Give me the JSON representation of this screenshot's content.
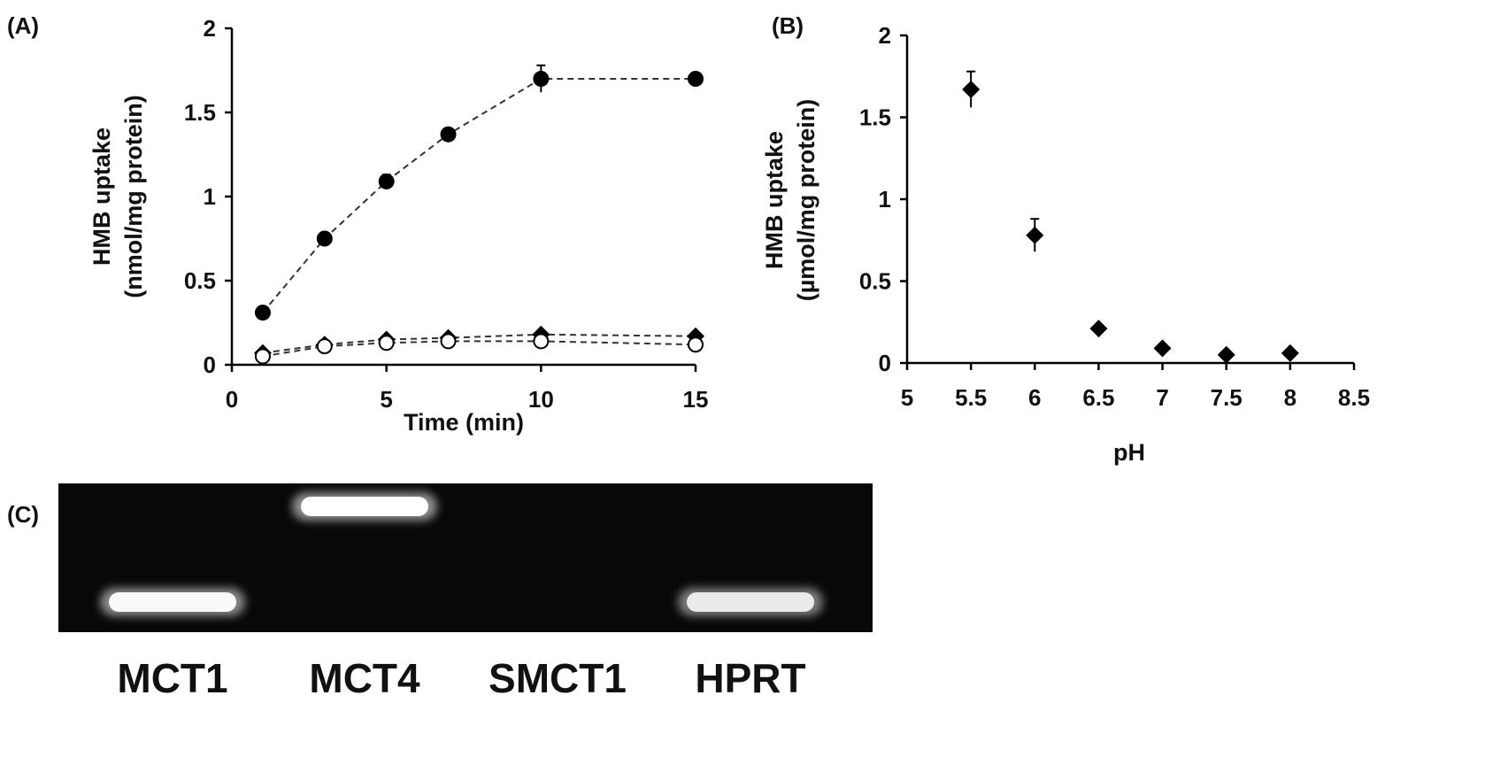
{
  "labels": {
    "panel_a": "(A)",
    "panel_b": "(B)",
    "panel_c": "(C)"
  },
  "chart_data": [
    {
      "type": "line",
      "panel": "(A)",
      "xlabel": "Time (min)",
      "ylabel_line1": "HMB uptake",
      "ylabel_line2": "(nmol/mg protein)",
      "xlim": [
        0,
        15
      ],
      "ylim": [
        0,
        2
      ],
      "xticks": [
        0,
        5,
        10,
        15
      ],
      "yticks": [
        0,
        0.5,
        1,
        1.5,
        2
      ],
      "x": [
        1,
        3,
        5,
        7,
        10,
        15
      ],
      "grid": false,
      "series": [
        {
          "marker": "filled-circle",
          "values": [
            0.31,
            0.75,
            1.09,
            1.37,
            1.7,
            1.7
          ],
          "errors": [
            0.02,
            0.02,
            0.04,
            0.02,
            0.08,
            0.02
          ]
        },
        {
          "marker": "filled-diamond",
          "values": [
            0.07,
            0.12,
            0.15,
            0.16,
            0.18,
            0.17
          ],
          "errors": [
            0.01,
            0.01,
            0.01,
            0.01,
            0.01,
            0.01
          ]
        },
        {
          "marker": "open-circle",
          "values": [
            0.05,
            0.11,
            0.13,
            0.14,
            0.14,
            0.12
          ],
          "errors": [
            0.01,
            0.01,
            0.01,
            0.01,
            0.01,
            0.01
          ]
        }
      ]
    },
    {
      "type": "scatter",
      "panel": "(B)",
      "xlabel": "pH",
      "ylabel_line1": "HMB uptake",
      "ylabel_line2": "(µmol/mg protein)",
      "xlim": [
        5,
        8.5
      ],
      "ylim": [
        0,
        2
      ],
      "xticks": [
        5,
        5.5,
        6,
        6.5,
        7,
        7.5,
        8,
        8.5
      ],
      "yticks": [
        0,
        0.5,
        1,
        1.5,
        2
      ],
      "grid": false,
      "series": [
        {
          "marker": "filled-diamond",
          "x": [
            5.5,
            6,
            6.5,
            7,
            7.5,
            8
          ],
          "values": [
            1.67,
            0.78,
            0.21,
            0.09,
            0.05,
            0.06
          ],
          "errors": [
            0.11,
            0.1,
            0.02,
            0.01,
            0.01,
            0.01
          ]
        }
      ]
    }
  ],
  "gel": {
    "panel": "(C)",
    "lanes": [
      {
        "label": "MCT1",
        "band": "low",
        "intensity": 0.95
      },
      {
        "label": "MCT4",
        "band": "high",
        "intensity": 1.0
      },
      {
        "label": "SMCT1",
        "band": "none",
        "intensity": 0
      },
      {
        "label": "HPRT",
        "band": "low",
        "intensity": 0.85
      }
    ]
  }
}
